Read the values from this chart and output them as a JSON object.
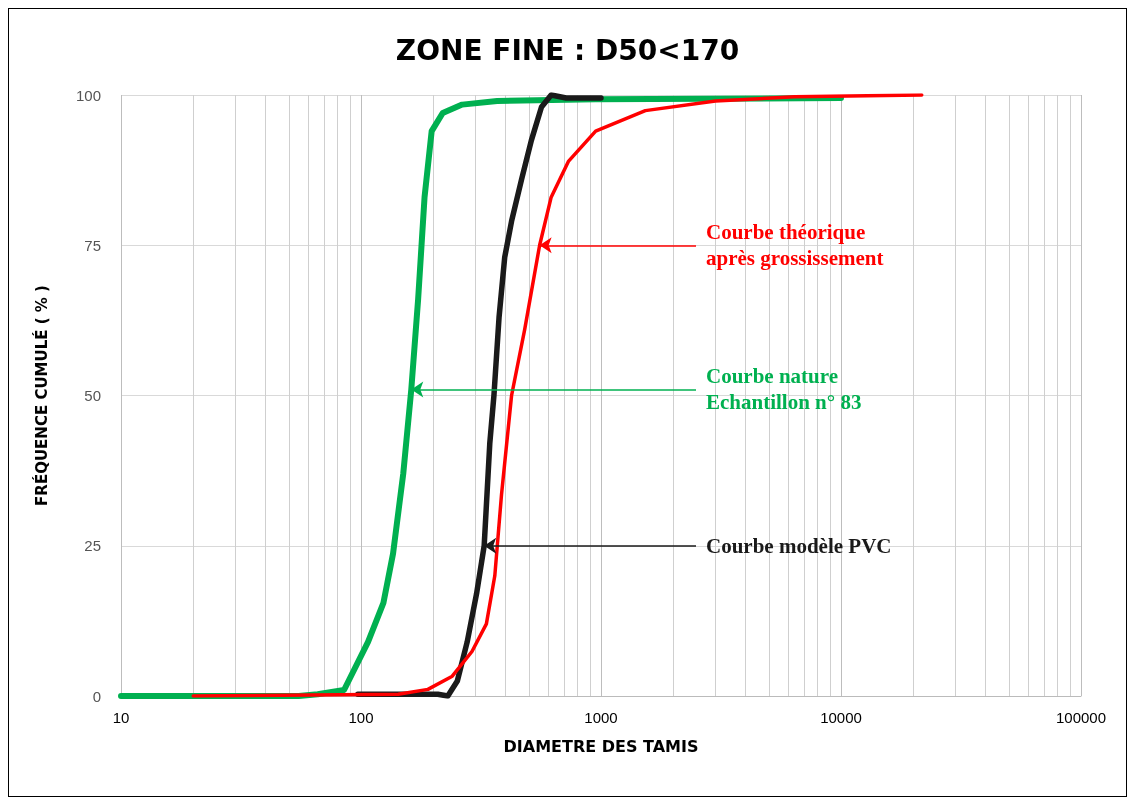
{
  "chart_data": {
    "type": "line",
    "title": "ZONE FINE : D50<170",
    "xlabel": "DIAMETRE DES TAMIS",
    "ylabel": "FRÉQUENCE CUMULÉ ( % )",
    "log": "x",
    "grid": true,
    "marker": "none",
    "line_style": "solid",
    "xlim": [
      10,
      100000
    ],
    "xticks": [
      10,
      100,
      1000,
      10000,
      100000
    ],
    "ylim": [
      0,
      100
    ],
    "yticks": [
      0,
      25,
      50,
      75,
      100
    ],
    "series": [
      {
        "color": "#00b050",
        "x": [
          10,
          55,
          66,
          85,
          107,
          124,
          136,
          150,
          162,
          173,
          184,
          197,
          219,
          264,
          369,
          950,
          10000
        ],
        "values": [
          0,
          0,
          0.3,
          1,
          9,
          15.5,
          23.7,
          37,
          51,
          66,
          83,
          94,
          97,
          98.4,
          99,
          99.3,
          99.5
        ]
      },
      {
        "color": "#1a1a1a",
        "x": [
          97,
          209,
          230,
          252,
          277,
          303,
          326,
          344,
          358,
          376,
          397,
          424,
          467,
          513,
          565,
          620,
          716,
          1000
        ],
        "values": [
          0.3,
          0.3,
          0,
          2.5,
          9,
          17,
          25,
          42,
          50,
          63,
          73,
          79,
          86,
          92.5,
          98,
          100,
          99.5,
          99.5
        ]
      },
      {
        "color": "#ff0000",
        "x": [
          20,
          143,
          190,
          240,
          290,
          333,
          361,
          385,
          424,
          481,
          555,
          620,
          733,
          950,
          1530,
          3000,
          6400,
          21700
        ],
        "values": [
          0,
          0.3,
          1.1,
          3.3,
          7.4,
          12,
          20,
          33.5,
          50,
          61,
          75,
          83,
          89,
          94,
          97.4,
          99,
          99.7,
          100
        ]
      }
    ],
    "annotations": [
      {
        "text": "Courbe nature Echantillon n° 83",
        "x": 162,
        "y": 51
      },
      {
        "text": "Courbe modèle PVC",
        "x": 326,
        "y": 25
      },
      {
        "text": "Courbe théorique après grossissement",
        "x": 555,
        "y": 75
      }
    ]
  }
}
